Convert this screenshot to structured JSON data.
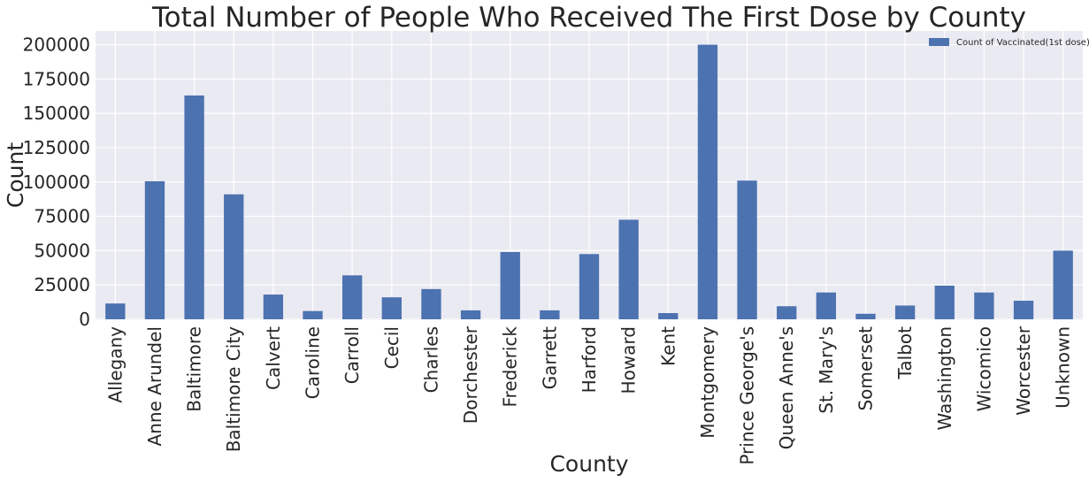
{
  "chart_data": {
    "type": "bar",
    "title": "Total Number of People Who Received The First Dose by County",
    "xlabel": "County",
    "ylabel": "Count",
    "ylim": [
      0,
      210000
    ],
    "yticks": [
      0,
      25000,
      50000,
      75000,
      100000,
      125000,
      150000,
      175000,
      200000
    ],
    "grid": true,
    "legend_position": "top-right",
    "categories": [
      "Allegany",
      "Anne Arundel",
      "Baltimore",
      "Baltimore City",
      "Calvert",
      "Caroline",
      "Carroll",
      "Cecil",
      "Charles",
      "Dorchester",
      "Frederick",
      "Garrett",
      "Harford",
      "Howard",
      "Kent",
      "Montgomery",
      "Prince George's",
      "Queen Anne's",
      "St. Mary's",
      "Somerset",
      "Talbot",
      "Washington",
      "Wicomico",
      "Worcester",
      "Unknown"
    ],
    "series": [
      {
        "name": "Count of Vaccinated(1st dose)",
        "color": "#4c72b0",
        "values": [
          11500,
          100500,
          163000,
          91000,
          18000,
          6000,
          32000,
          16000,
          22000,
          6500,
          49000,
          6500,
          47500,
          72500,
          4500,
          200000,
          101000,
          9500,
          19500,
          4000,
          10000,
          24500,
          19500,
          13500,
          50000
        ]
      }
    ]
  }
}
